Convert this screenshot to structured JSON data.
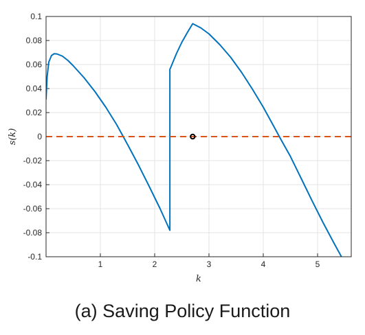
{
  "caption": "(a) Saving Policy Function",
  "chart_data": {
    "type": "line",
    "xlabel": "k",
    "ylabel": "s(k)",
    "xlim": [
      0,
      5.62
    ],
    "ylim": [
      -0.1,
      0.1
    ],
    "xticks": [
      1,
      2,
      3,
      4,
      5
    ],
    "yticks": [
      0.1,
      0.08,
      0.06,
      0.04,
      0.02,
      0,
      -0.02,
      -0.04,
      -0.06,
      -0.08,
      -0.1
    ],
    "ytick_labels": [
      "0.1",
      "0.08",
      "0.06",
      "0.04",
      "0.02",
      "0",
      "-0.02",
      "-0.04",
      "-0.06",
      "-0.08",
      "-0.1"
    ],
    "grid": true,
    "series": [
      {
        "style": "solid",
        "color": "#0072BD",
        "x": [
          0.0,
          0.02,
          0.05,
          0.1,
          0.15,
          0.2,
          0.3,
          0.4,
          0.5,
          0.7,
          0.9,
          1.1,
          1.3,
          1.5,
          1.7,
          1.9,
          2.1,
          2.28,
          2.28,
          2.3,
          2.4,
          2.5,
          2.6,
          2.7,
          2.85,
          3.0,
          3.2,
          3.4,
          3.6,
          3.8,
          4.0,
          4.2,
          4.32,
          4.5,
          4.7,
          4.9,
          5.1,
          5.3,
          5.5,
          5.62
        ],
        "y": [
          0.031,
          0.05,
          0.062,
          0.0675,
          0.069,
          0.0688,
          0.067,
          0.0635,
          0.059,
          0.049,
          0.0375,
          0.0245,
          0.01,
          -0.0065,
          -0.0235,
          -0.0415,
          -0.06,
          -0.078,
          0.056,
          0.058,
          0.069,
          0.0785,
          0.0865,
          0.094,
          0.0905,
          0.0855,
          0.0765,
          0.066,
          0.0535,
          0.0395,
          0.0245,
          0.008,
          -0.002,
          -0.0165,
          -0.035,
          -0.0535,
          -0.0715,
          -0.0885,
          -0.105,
          -0.115
        ]
      },
      {
        "style": "dashed",
        "color": "#D95319",
        "x": [
          0,
          5.62
        ],
        "y": [
          0,
          0
        ]
      }
    ],
    "markers": [
      {
        "x": 2.7,
        "y": 0,
        "shape": "circle",
        "color": "#000000"
      }
    ]
  }
}
